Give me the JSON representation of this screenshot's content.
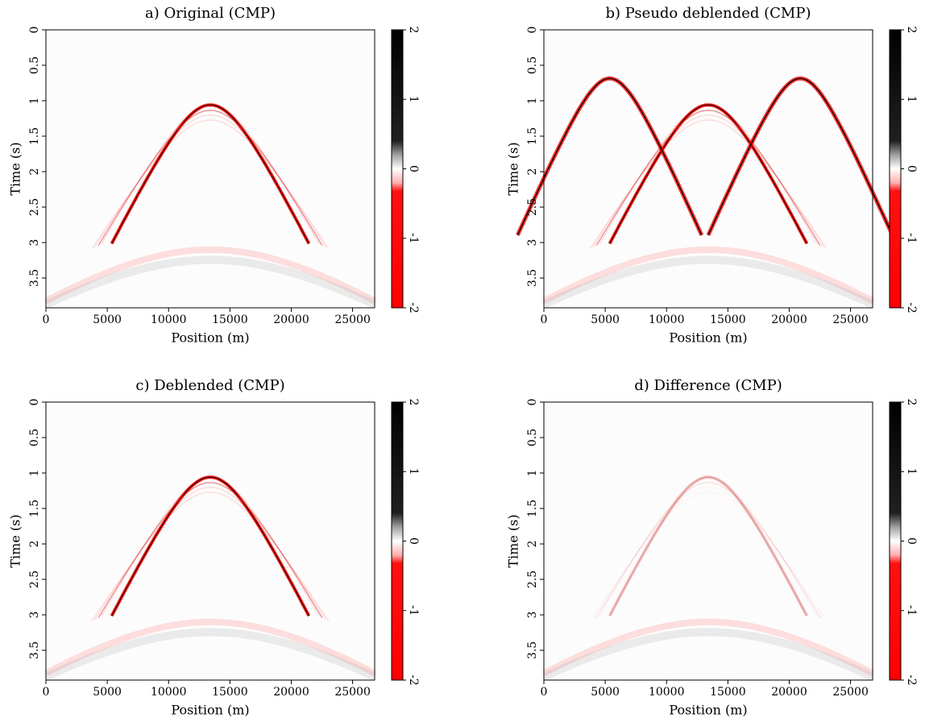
{
  "chart_data": [
    {
      "type": "image",
      "title": "a) Original (CMP)",
      "xlabel": "Position (m)",
      "ylabel": "Time (s)",
      "xlim": [
        0,
        26800
      ],
      "xticks": [
        0,
        5000,
        10000,
        15000,
        20000,
        25000
      ],
      "ylim": [
        0,
        3.92
      ],
      "yticks": [
        0,
        0.5,
        1,
        1.5,
        2,
        2.5,
        3,
        3.5
      ],
      "clim": [
        -2,
        2
      ],
      "cticks": [
        -2,
        -1,
        0,
        1,
        2
      ]
    },
    {
      "type": "image",
      "title": "b) Pseudo deblended (CMP)",
      "xlabel": "Position (m)",
      "ylabel": "Time (s)",
      "xlim": [
        0,
        26800
      ],
      "xticks": [
        0,
        5000,
        10000,
        15000,
        20000,
        25000
      ],
      "ylim": [
        0,
        3.92
      ],
      "yticks": [
        0,
        0.5,
        1,
        1.5,
        2,
        2.5,
        3,
        3.5
      ],
      "clim": [
        -2,
        2
      ],
      "cticks": [
        -2,
        -1,
        0,
        1,
        2
      ]
    },
    {
      "type": "image",
      "title": "c) Deblended (CMP)",
      "xlabel": "Position (m)",
      "ylabel": "Time (s)",
      "xlim": [
        0,
        26800
      ],
      "xticks": [
        0,
        5000,
        10000,
        15000,
        20000,
        25000
      ],
      "ylim": [
        0,
        3.92
      ],
      "yticks": [
        0,
        0.5,
        1,
        1.5,
        2,
        2.5,
        3,
        3.5
      ],
      "clim": [
        -2,
        2
      ],
      "cticks": [
        -2,
        -1,
        0,
        1,
        2
      ]
    },
    {
      "type": "image",
      "title": "d) Difference (CMP)",
      "xlabel": "Position (m)",
      "ylabel": "Time (s)",
      "xlim": [
        0,
        26800
      ],
      "xticks": [
        0,
        5000,
        10000,
        15000,
        20000,
        25000
      ],
      "ylim": [
        0,
        3.92
      ],
      "yticks": [
        0,
        0.5,
        1,
        1.5,
        2,
        2.5,
        3,
        3.5
      ],
      "clim": [
        -2,
        2
      ],
      "cticks": [
        -2,
        -1,
        0,
        1,
        2
      ]
    }
  ]
}
